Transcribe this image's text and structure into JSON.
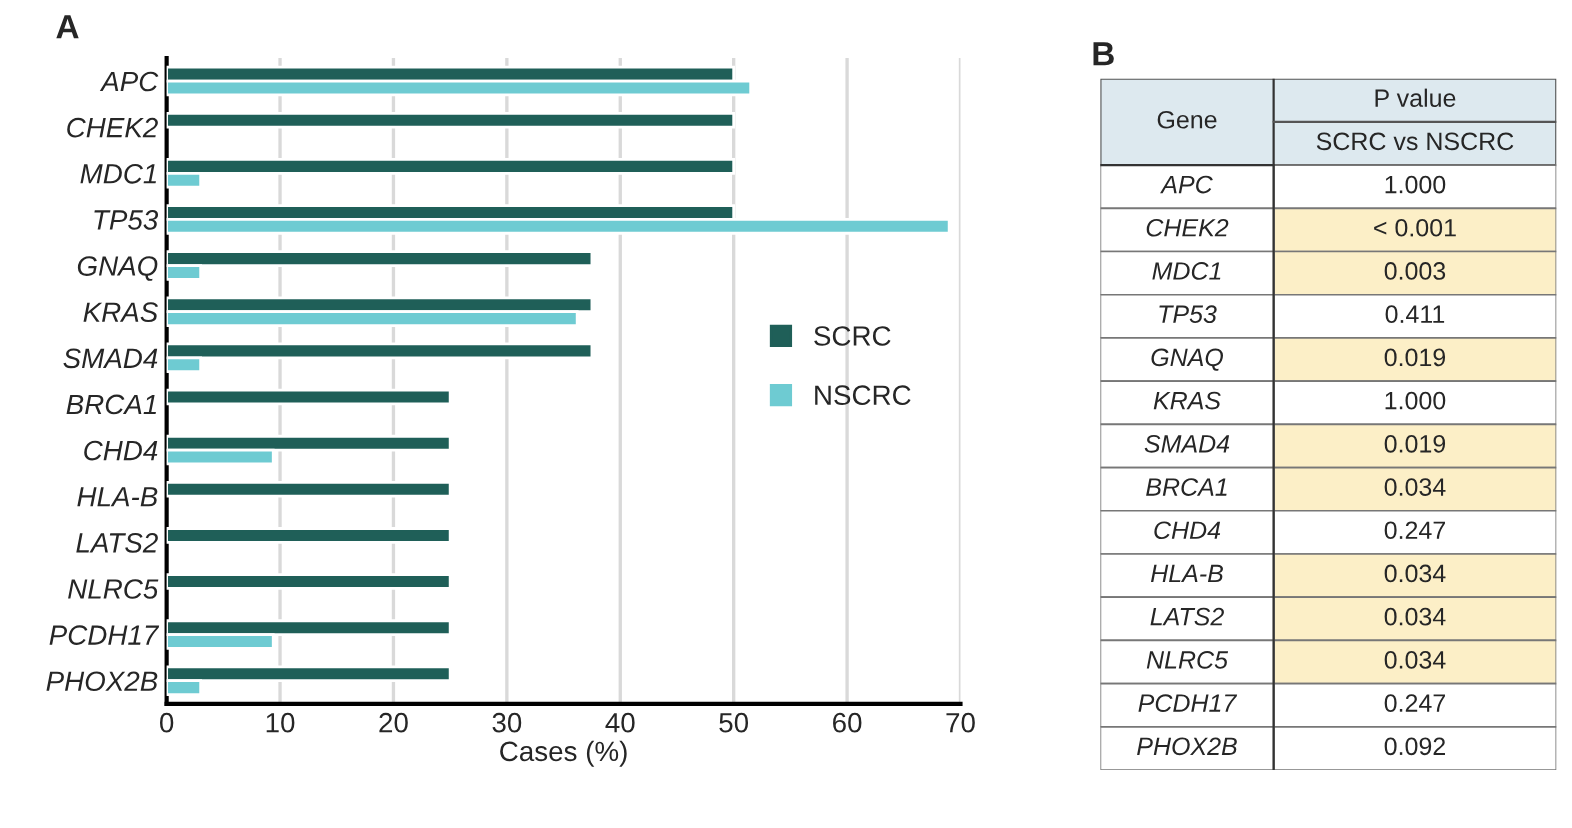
{
  "chart_data": [
    {
      "type": "bar",
      "title": "A",
      "orientation": "horizontal",
      "xlabel": "Cases (%)",
      "categories": [
        "APC",
        "CHEK2",
        "MDC1",
        "TP53",
        "GNAQ",
        "KRAS",
        "SMAD4",
        "BRCA1",
        "CHD4",
        "HLA-B",
        "LATS2",
        "NLRC5",
        "PCDH17",
        "PHOX2B"
      ],
      "series": [
        {
          "name": "SCRC",
          "color": "#1f5f58",
          "values": [
            50,
            50,
            50,
            50,
            37.5,
            37.5,
            37.5,
            25,
            25,
            25,
            25,
            25,
            25,
            25
          ]
        },
        {
          "name": "NSCRC",
          "color": "#6ecbd2",
          "values": [
            51.5,
            null,
            3,
            69,
            3,
            36.2,
            3,
            null,
            9.4,
            null,
            null,
            null,
            9.4,
            3
          ]
        }
      ],
      "xlim": [
        0,
        70
      ],
      "xticks": [
        0,
        10,
        20,
        30,
        40,
        50,
        60,
        70
      ],
      "grid": "x",
      "legend": "right"
    },
    {
      "type": "other",
      "title": "B",
      "categories": [
        "Gene",
        "P value"
      ],
      "xlabel": "SCRC vs NSCRC",
      "y_categories": [
        "APC",
        "CHEK2",
        "MDC1",
        "TP53",
        "GNAQ",
        "KRAS",
        "SMAD4",
        "BRCA1",
        "CHD4",
        "HLA-B",
        "LATS2",
        "NLRC5",
        "PCDH17",
        "PHOX2B"
      ],
      "cell_labels": [
        [
          "1.000"
        ],
        [
          "< 0.001"
        ],
        [
          "0.003"
        ],
        [
          "0.411"
        ],
        [
          "0.019"
        ],
        [
          "1.000"
        ],
        [
          "0.019"
        ],
        [
          "0.034"
        ],
        [
          "0.247"
        ],
        [
          "0.034"
        ],
        [
          "0.034"
        ],
        [
          "0.034"
        ],
        [
          "0.247"
        ],
        [
          "0.092"
        ]
      ],
      "colors": [
        "#dde9ef",
        "#ffffff",
        "#fcefc7",
        "#fcefc7",
        "#ffffff",
        "#fcefc7",
        "#ffffff",
        "#fcefc7",
        "#fcefc7",
        "#ffffff",
        "#fcefc7",
        "#fcefc7",
        "#fcefc7",
        "#ffffff",
        "#ffffff"
      ]
    }
  ]
}
